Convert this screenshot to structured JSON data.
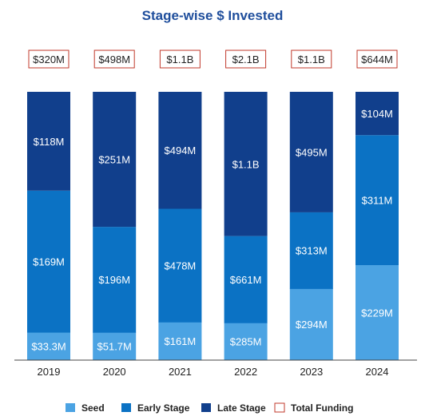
{
  "chart_data": {
    "type": "bar",
    "stacked": true,
    "title": "Stage-wise $ Invested",
    "categories": [
      "2019",
      "2020",
      "2021",
      "2022",
      "2023",
      "2024"
    ],
    "series": [
      {
        "name": "Seed",
        "color": "#4ba3e3",
        "values": [
          33.3,
          51.7,
          161,
          285,
          294,
          229
        ],
        "labels": [
          "$33.3M",
          "$51.7M",
          "$161M",
          "$285M",
          "$294M",
          "$229M"
        ]
      },
      {
        "name": "Early Stage",
        "color": "#0b72c4",
        "values": [
          169,
          196,
          478,
          661,
          313,
          311
        ],
        "labels": [
          "$169M",
          "$196M",
          "$478M",
          "$661M",
          "$313M",
          "$311M"
        ]
      },
      {
        "name": "Late Stage",
        "color": "#113f8c",
        "values": [
          118,
          251,
          494,
          1100,
          495,
          104
        ],
        "labels": [
          "$118M",
          "$251M",
          "$494M",
          "$1.1B",
          "$495M",
          "$104M"
        ]
      }
    ],
    "totals": {
      "name": "Total Funding",
      "values": [
        320,
        498,
        1100,
        2100,
        1100,
        644
      ],
      "labels": [
        "$320M",
        "$498M",
        "$1.1B",
        "$2.1B",
        "$1.1B",
        "$644M"
      ],
      "box_color": "#c0392b"
    },
    "normalized_100_percent": true,
    "legend_position": "bottom",
    "grid": false
  }
}
